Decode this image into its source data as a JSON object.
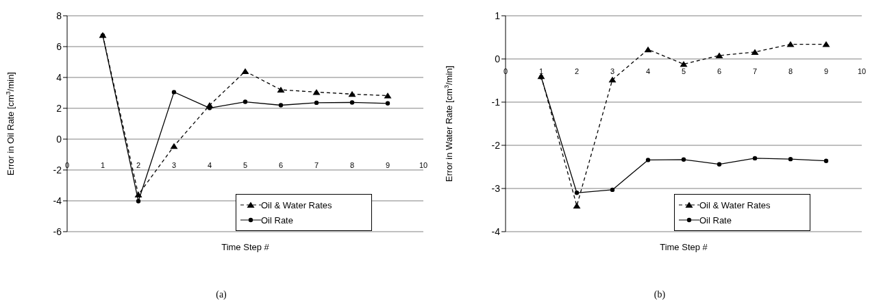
{
  "chart_data": [
    {
      "type": "line",
      "xlabel": "Time Step #",
      "ylabel": "Error in Oil Rate [cm$^{3}$/min]",
      "annotations": [
        "(a)"
      ],
      "x": [
        1,
        2,
        3,
        4,
        5,
        6,
        7,
        8,
        9
      ],
      "xlim": [
        0,
        10
      ],
      "xticks": [
        0,
        1,
        2,
        3,
        4,
        5,
        6,
        7,
        8,
        9,
        10
      ],
      "ylim": [
        -6,
        8
      ],
      "yticks": [
        -6,
        -4,
        -2,
        0,
        2,
        4,
        6,
        8
      ],
      "grid": "y",
      "legend": "bottom right",
      "series": [
        {
          "name": "Oil & Water Rates",
          "color": "#000000",
          "line_style": "dashed",
          "marker": "triangle",
          "values": [
            6.75,
            -3.6,
            -0.45,
            2.2,
            4.4,
            3.2,
            3.05,
            2.92,
            2.82
          ]
        },
        {
          "name": "Oil Rate",
          "color": "#000000",
          "line_style": "solid",
          "marker": "circle",
          "values": [
            6.72,
            -4.02,
            3.05,
            2.02,
            2.42,
            2.2,
            2.36,
            2.38,
            2.32
          ]
        }
      ]
    },
    {
      "type": "line",
      "xlabel": "Time Step #",
      "ylabel": "Error in Water Rate [cm$^{3}$/min]",
      "annotations": [
        "(b)"
      ],
      "x": [
        1,
        2,
        3,
        4,
        5,
        6,
        7,
        8,
        9
      ],
      "xlim": [
        0,
        10
      ],
      "xticks": [
        0,
        1,
        2,
        3,
        4,
        5,
        6,
        7,
        8,
        9,
        10
      ],
      "ylim": [
        -4,
        1
      ],
      "yticks": [
        -4,
        -3,
        -2,
        -1,
        0,
        1
      ],
      "grid": "y",
      "legend": "bottom right",
      "series": [
        {
          "name": "Oil & Water Rates",
          "color": "#000000",
          "line_style": "dashed",
          "marker": "triangle",
          "values": [
            -0.4,
            -3.4,
            -0.48,
            0.22,
            -0.12,
            0.08,
            0.16,
            0.34,
            0.34
          ]
        },
        {
          "name": "Oil Rate",
          "color": "#000000",
          "line_style": "solid",
          "marker": "circle",
          "values": [
            -0.42,
            -3.1,
            -3.03,
            -2.34,
            -2.33,
            -2.44,
            -2.3,
            -2.32,
            -2.36
          ]
        }
      ]
    }
  ]
}
